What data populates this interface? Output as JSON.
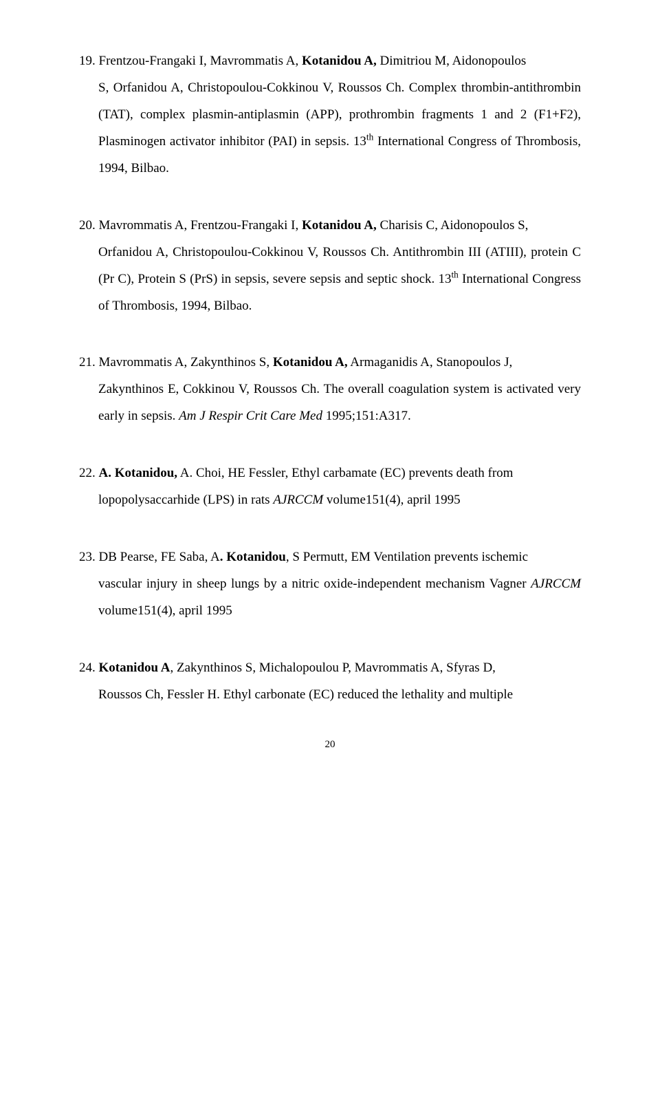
{
  "refs": [
    {
      "num": "19.",
      "p1a": "Frentzou-Frangaki I, Mavrommatis A, ",
      "p1b": "Kotanidou A,",
      "p1c": " Dimitriou M, Aidonopoulos",
      "p2a": "S, Orfanidou A, Christopoulou-Cokkinou V, Roussos Ch. Complex thrombin-antithrombin (TAT), complex plasmin-antiplasmin (APP), prothrombin fragments 1 and 2 (F1+F2), Plasminogen activator inhibitor (PAI) in sepsis. 13",
      "p2sup": "th",
      "p2b": " International Congress of Thrombosis, 1994, Bilbao."
    },
    {
      "num": "20.",
      "p1a": "Mavrommatis A, Frentzou-Frangaki I, ",
      "p1b": "Kotanidou A,",
      "p1c": " Charisis C, Aidonopoulos S,",
      "p2a": "Orfanidou A, Christopoulou-Cokkinou V, Roussos Ch. Antithrombin III (ATIII), protein C (Pr C), Protein S (PrS) in sepsis, severe sepsis and septic shock. 13",
      "p2sup": "th",
      "p2b": " International Congress of Thrombosis, 1994, Bilbao."
    },
    {
      "num": "21.",
      "p1a": "Mavrommatis A, Zakynthinos S, ",
      "p1b": "Kotanidou A,",
      "p1c": " Armaganidis A, Stanopoulos J,",
      "p2a": "Zakynthinos E, Cokkinou V, Roussos Ch. The overall coagulation system is activated very early in sepsis. ",
      "p2i": "Am J Respir Crit Care Med",
      "p2b": " 1995;151:A317."
    },
    {
      "num": "22.",
      "p1b": "A. Kotanidou,",
      "p1c": " A. Choi, HE Fessler, Ethyl carbamate (EC) prevents death from",
      "p2a": "lopopolysaccarhide (LPS) in rats ",
      "p2i": "AJRCCM",
      "p2b": " volume151(4), april 1995"
    },
    {
      "num": "23.",
      "p1a": "DB Pearse, FE Saba, A",
      "p1b": ". Kotanidou",
      "p1c": ", S Permutt, EM Ventilation prevents ischemic",
      "p2a": "vascular injury in sheep lungs by a nitric oxide-independent mechanism Vagner ",
      "p2i": "AJRCCM",
      "p2b": " volume151(4), april 1995"
    },
    {
      "num": "24.",
      "p1b": "Kotanidou A",
      "p1c": ", Zakynthinos S, Michalopoulou P, Mavrommatis A, Sfyras D,",
      "p2a": "Roussos Ch, Fessler H. Ethyl carbonate (EC) reduced the lethality and multiple"
    }
  ],
  "pageNumber": "20"
}
